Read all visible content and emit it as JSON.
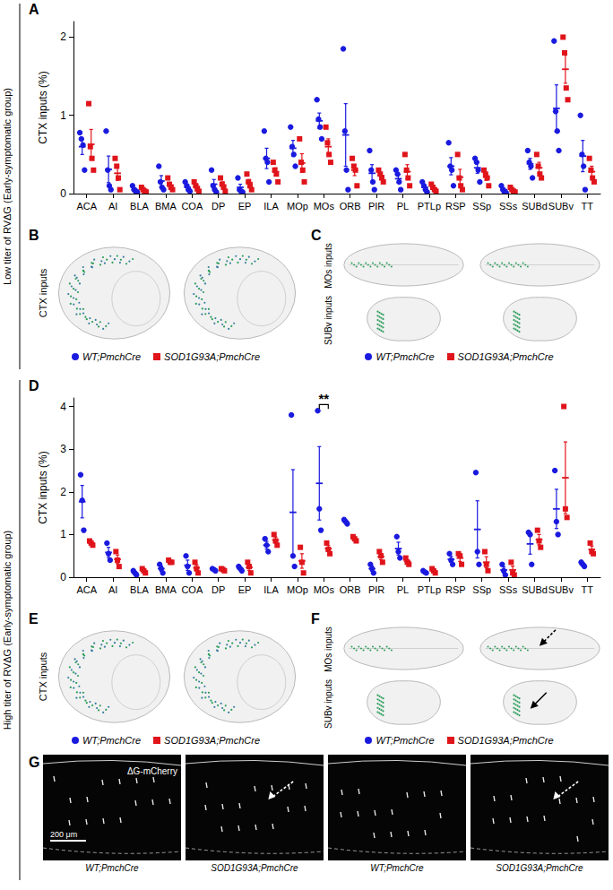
{
  "chart_data": [
    {
      "type": "scatter",
      "panel": "A",
      "ylabel": "CTX inputs (%)",
      "categories": [
        "ACA",
        "AI",
        "BLA",
        "BMA",
        "COA",
        "DP",
        "EP",
        "ILA",
        "MOp",
        "MOs",
        "ORB",
        "PIR",
        "PL",
        "PTLp",
        "RSP",
        "SSp",
        "SSs",
        "SUBd",
        "SUBv",
        "TT"
      ],
      "ylim": [
        0,
        2.2
      ],
      "yticks": [
        0,
        1,
        2
      ],
      "grid": false,
      "series": [
        {
          "name": "WT;PmchCre",
          "color": "#1a1adf",
          "marker": "circle",
          "values": [
            0.6,
            0.31,
            0.05,
            0.16,
            0.08,
            0.12,
            0.08,
            0.45,
            0.58,
            0.93,
            0.75,
            0.26,
            0.19,
            0.08,
            0.35,
            0.33,
            0.05,
            0.38,
            1.09,
            0.48
          ],
          "errors": [
            0.1,
            0.17,
            0.02,
            0.07,
            0.03,
            0.06,
            0.04,
            0.13,
            0.1,
            0.1,
            0.4,
            0.11,
            0.05,
            0.03,
            0.11,
            0.07,
            0.02,
            0.07,
            0.3,
            0.2
          ],
          "points": [
            [
              0.78,
              0.7,
              0.62,
              0.3
            ],
            [
              0.8,
              0.3,
              0.1,
              0.05
            ],
            [
              0.1,
              0.05,
              0.03,
              0.02
            ],
            [
              0.35,
              0.15,
              0.08,
              0.05
            ],
            [
              0.15,
              0.1,
              0.05,
              0.03
            ],
            [
              0.3,
              0.1,
              0.05,
              0.02
            ],
            [
              0.2,
              0.05,
              0.03,
              0.02
            ],
            [
              0.8,
              0.45,
              0.4,
              0.15
            ],
            [
              0.85,
              0.6,
              0.5,
              0.35
            ],
            [
              1.2,
              0.95,
              0.85,
              0.7
            ],
            [
              1.85,
              0.8,
              0.3,
              0.05
            ],
            [
              0.55,
              0.3,
              0.15,
              0.05
            ],
            [
              0.3,
              0.25,
              0.15,
              0.05
            ],
            [
              0.15,
              0.1,
              0.05,
              0.02
            ],
            [
              0.65,
              0.35,
              0.3,
              0.1
            ],
            [
              0.45,
              0.4,
              0.3,
              0.15
            ],
            [
              0.1,
              0.05,
              0.02,
              0.01
            ],
            [
              0.55,
              0.4,
              0.35,
              0.2
            ],
            [
              1.95,
              1.05,
              0.8,
              0.55
            ],
            [
              1.0,
              0.5,
              0.35,
              0.05
            ]
          ]
        },
        {
          "name": "SOD1G93A;PmchCre",
          "color": "#e0141b",
          "marker": "square",
          "values": [
            0.63,
            0.26,
            0.05,
            0.11,
            0.09,
            0.11,
            0.14,
            0.28,
            0.39,
            0.6,
            0.3,
            0.23,
            0.28,
            0.07,
            0.21,
            0.21,
            0.05,
            0.33,
            1.59,
            0.28
          ],
          "errors": [
            0.19,
            0.09,
            0.01,
            0.03,
            0.03,
            0.04,
            0.04,
            0.05,
            0.12,
            0.1,
            0.07,
            0.03,
            0.09,
            0.02,
            0.1,
            0.04,
            0.01,
            0.07,
            0.18,
            0.07
          ],
          "points": [
            [
              1.15,
              0.6,
              0.45,
              0.3
            ],
            [
              0.45,
              0.35,
              0.2,
              0.05
            ],
            [
              0.08,
              0.05,
              0.03,
              0.02
            ],
            [
              0.2,
              0.12,
              0.08,
              0.05
            ],
            [
              0.15,
              0.1,
              0.06,
              0.03
            ],
            [
              0.2,
              0.12,
              0.08,
              0.03
            ],
            [
              0.25,
              0.15,
              0.1,
              0.05
            ],
            [
              0.4,
              0.3,
              0.25,
              0.15
            ],
            [
              0.7,
              0.4,
              0.3,
              0.15
            ],
            [
              0.85,
              0.65,
              0.5,
              0.4
            ],
            [
              0.45,
              0.35,
              0.3,
              0.1
            ],
            [
              0.3,
              0.25,
              0.2,
              0.15
            ],
            [
              0.5,
              0.3,
              0.2,
              0.1
            ],
            [
              0.12,
              0.08,
              0.05,
              0.03
            ],
            [
              0.5,
              0.2,
              0.1,
              0.05
            ],
            [
              0.3,
              0.25,
              0.2,
              0.1
            ],
            [
              0.08,
              0.05,
              0.03,
              0.02
            ],
            [
              0.5,
              0.35,
              0.25,
              0.2
            ],
            [
              2.0,
              1.8,
              1.35,
              1.2
            ],
            [
              0.45,
              0.3,
              0.2,
              0.15
            ]
          ]
        }
      ]
    },
    {
      "type": "scatter",
      "panel": "D",
      "ylabel": "CTX inputs (%)",
      "categories": [
        "ACA",
        "AI",
        "BLA",
        "BMA",
        "COA",
        "DP",
        "EP",
        "ILA",
        "MOp",
        "MOs",
        "ORB",
        "PIR",
        "PL",
        "PTLp",
        "RSP",
        "SSp",
        "SSs",
        "SUBd",
        "SUBv",
        "TT"
      ],
      "ylim": [
        0,
        4.2
      ],
      "yticks": [
        0,
        1,
        2,
        3,
        4
      ],
      "grid": false,
      "annotations": [
        {
          "category": "MOs",
          "text": "**"
        }
      ],
      "series": [
        {
          "name": "WT;PmchCre",
          "color": "#1a1adf",
          "marker": "circle",
          "values": [
            1.77,
            0.58,
            0.1,
            0.2,
            0.28,
            0.18,
            0.2,
            0.75,
            1.52,
            2.2,
            1.3,
            0.2,
            0.67,
            0.12,
            0.42,
            1.12,
            0.17,
            0.78,
            1.6,
            0.3
          ],
          "errors": [
            0.38,
            0.12,
            0.03,
            0.06,
            0.12,
            0.01,
            0.03,
            0.09,
            1.0,
            0.86,
            0.03,
            0.06,
            0.15,
            0.01,
            0.07,
            0.67,
            0.07,
            0.24,
            0.46,
            0.03
          ],
          "points": [
            [
              2.4,
              1.8,
              1.1
            ],
            [
              0.8,
              0.55,
              0.4
            ],
            [
              0.15,
              0.1,
              0.05
            ],
            [
              0.3,
              0.2,
              0.1
            ],
            [
              0.5,
              0.25,
              0.1
            ],
            [
              0.2,
              0.18,
              0.15
            ],
            [
              0.25,
              0.2,
              0.15
            ],
            [
              0.9,
              0.75,
              0.6
            ],
            [
              3.8,
              0.5,
              0.25
            ],
            [
              3.9,
              1.6,
              1.1
            ],
            [
              1.35,
              1.3,
              1.25
            ],
            [
              0.3,
              0.2,
              0.1
            ],
            [
              0.95,
              0.6,
              0.45
            ],
            [
              0.15,
              0.12,
              0.1
            ],
            [
              0.55,
              0.4,
              0.3
            ],
            [
              2.45,
              0.6,
              0.3
            ],
            [
              0.3,
              0.15,
              0.05
            ],
            [
              1.05,
              1.0,
              0.3
            ],
            [
              2.5,
              1.3,
              1.0
            ],
            [
              0.35,
              0.3,
              0.25
            ]
          ]
        },
        {
          "name": "SOD1G93A;PmchCre",
          "color": "#e0141b",
          "marker": "square",
          "values": [
            0.8,
            0.42,
            0.15,
            0.37,
            0.22,
            0.18,
            0.23,
            0.87,
            0.38,
            0.67,
            0.9,
            0.48,
            0.37,
            0.15,
            0.45,
            0.35,
            0.17,
            0.88,
            2.33,
            0.65
          ],
          "errors": [
            0.03,
            0.1,
            0.03,
            0.02,
            0.07,
            0.01,
            0.07,
            0.07,
            0.17,
            0.07,
            0.03,
            0.07,
            0.04,
            0.03,
            0.08,
            0.13,
            0.09,
            0.12,
            0.84,
            0.08
          ],
          "points": [
            [
              0.85,
              0.8,
              0.75
            ],
            [
              0.6,
              0.4,
              0.25
            ],
            [
              0.2,
              0.15,
              0.1
            ],
            [
              0.4,
              0.35,
              0.35
            ],
            [
              0.35,
              0.2,
              0.1
            ],
            [
              0.2,
              0.18,
              0.15
            ],
            [
              0.35,
              0.25,
              0.1
            ],
            [
              1.0,
              0.85,
              0.75
            ],
            [
              0.7,
              0.35,
              0.1
            ],
            [
              0.8,
              0.65,
              0.55
            ],
            [
              0.95,
              0.9,
              0.85
            ],
            [
              0.6,
              0.5,
              0.35
            ],
            [
              0.45,
              0.35,
              0.3
            ],
            [
              0.2,
              0.15,
              0.1
            ],
            [
              0.55,
              0.5,
              0.3
            ],
            [
              0.6,
              0.3,
              0.15
            ],
            [
              0.35,
              0.1,
              0.05
            ],
            [
              1.1,
              0.85,
              0.7
            ],
            [
              4.0,
              1.6,
              1.4
            ],
            [
              0.8,
              0.6,
              0.55
            ]
          ]
        }
      ]
    }
  ],
  "figure": {
    "group_labels": [
      "Low titer of RVΔG (Early-symptomatic group)",
      "High titer of RVΔG (Early-symptomatic group)"
    ],
    "image_rows": [
      {
        "left": {
          "panel": "B",
          "label": "CTX inputs"
        },
        "right": {
          "panel": "C",
          "labels": [
            "MOs inputs",
            "SUBv inputs"
          ]
        }
      },
      {
        "left": {
          "panel": "E",
          "label": "CTX inputs"
        },
        "right": {
          "panel": "F",
          "labels": [
            "MOs inputs",
            "SUBv inputs"
          ]
        }
      }
    ],
    "micrographs": {
      "panel": "G",
      "stain": "ΔG-mCherry",
      "scale_bar": "200 μm",
      "captions": [
        "WT;PmchCre",
        "SOD1G93A;PmchCre",
        "WT;PmchCre",
        "SOD1G93A;PmchCre"
      ]
    }
  }
}
